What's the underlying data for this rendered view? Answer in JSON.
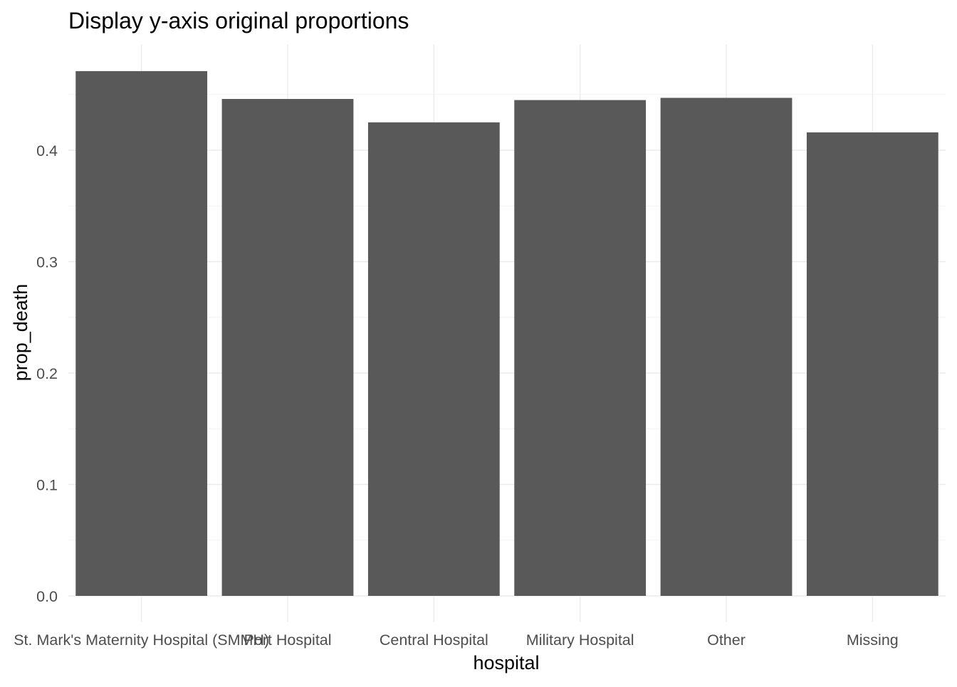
{
  "chart_data": {
    "type": "bar",
    "title": "Display y-axis original proportions",
    "xlabel": "hospital",
    "ylabel": "prop_death",
    "categories": [
      "St. Mark's Maternity Hospital (SMMH)",
      "Port Hospital",
      "Central Hospital",
      "Military Hospital",
      "Other",
      "Missing"
    ],
    "values": [
      0.471,
      0.446,
      0.425,
      0.445,
      0.447,
      0.416
    ],
    "ylim": [
      0,
      0.49
    ],
    "yticks": [
      0.0,
      0.1,
      0.2,
      0.3,
      0.4
    ],
    "ytick_labels": [
      "0.0",
      "0.1",
      "0.2",
      "0.3",
      "0.4"
    ],
    "grid": true,
    "legend": "none",
    "colors": {
      "bar": "#595959",
      "grid_major": "#ebebeb",
      "grid_minor": "#f4f4f4",
      "tick_text": "#4d4d4d",
      "title_text": "#000000",
      "background": "#ffffff"
    }
  }
}
